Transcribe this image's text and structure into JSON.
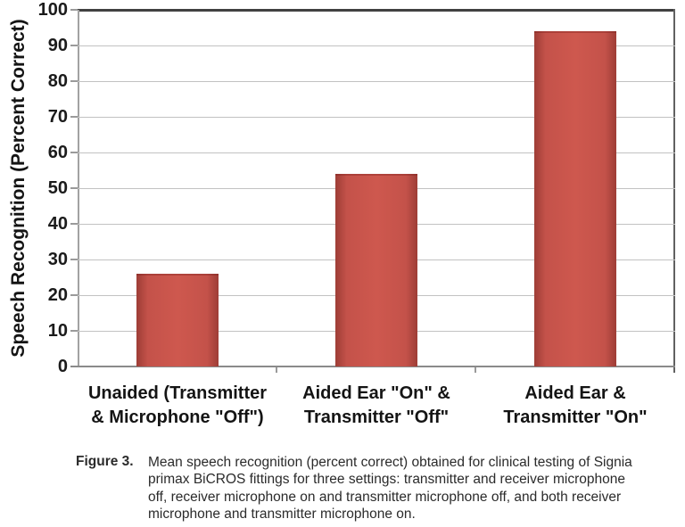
{
  "chart_data": {
    "type": "bar",
    "title": "",
    "categories": [
      "Unaided (Transmitter\n& Microphone \"Off\")",
      "Aided Ear \"On\" &\nTransmitter \"Off\"",
      "Aided Ear &\nTransmitter \"On\""
    ],
    "values": [
      26,
      54,
      94
    ],
    "xlabel": "",
    "ylabel": "Speech Recognition (Percent Correct)",
    "ylim": [
      0,
      100
    ],
    "yticks": [
      0,
      10,
      20,
      30,
      40,
      50,
      60,
      70,
      80,
      90,
      100
    ],
    "grid": true,
    "legend": "none",
    "bar_color_center": "#ce584e",
    "bar_color_edge": "#9e3d36"
  },
  "caption": {
    "label": "Figure 3.",
    "lines": [
      "Mean speech recognition (percent correct) obtained for clinical testing of Signia",
      "primax BiCROS fittings for three settings:  transmitter and receiver microphone",
      "off, receiver microphone on and transmitter microphone off, and both receiver",
      "microphone and transmitter microphone on."
    ]
  }
}
